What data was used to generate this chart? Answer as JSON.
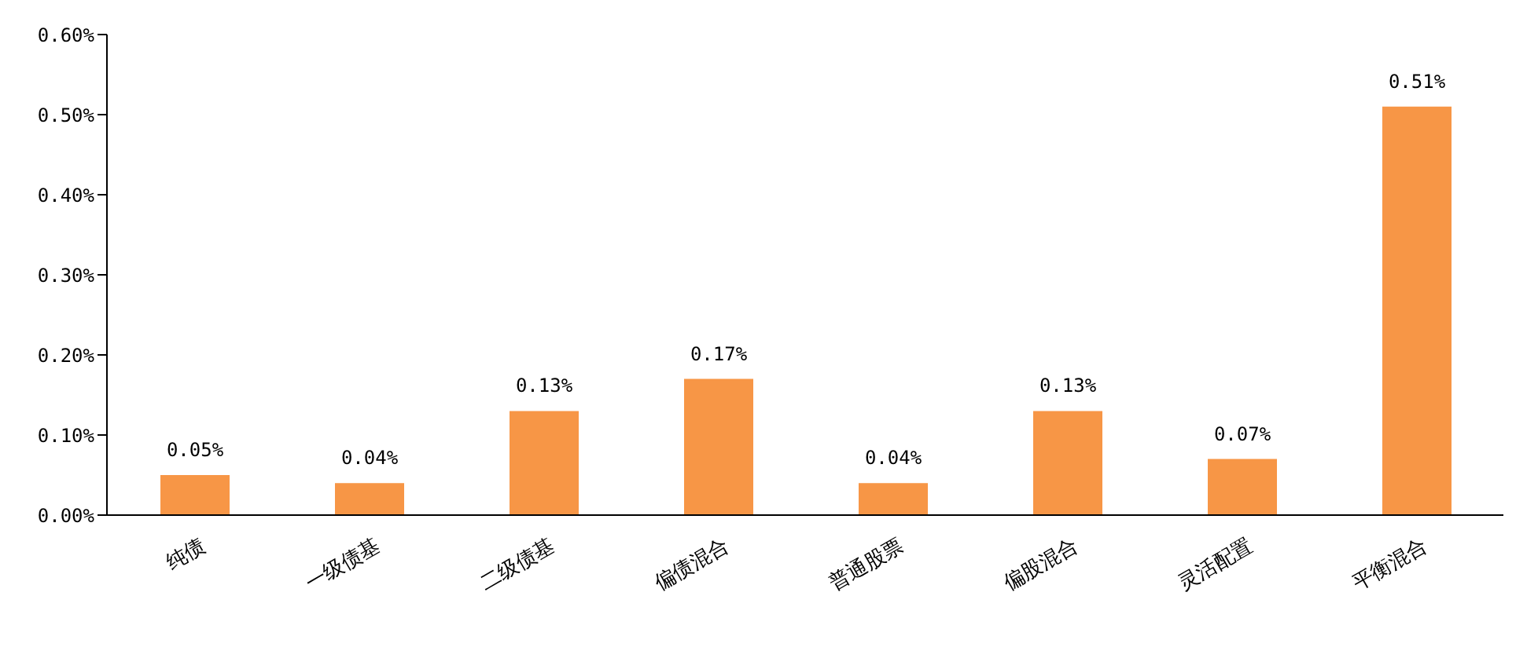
{
  "chart_data": {
    "type": "bar",
    "categories": [
      "纯债",
      "一级债基",
      "二级债基",
      "偏债混合",
      "普通股票",
      "偏股混合",
      "灵活配置",
      "平衡混合"
    ],
    "values": [
      0.05,
      0.04,
      0.13,
      0.17,
      0.04,
      0.13,
      0.07,
      0.51
    ],
    "value_labels": [
      "0.05%",
      "0.04%",
      "0.13%",
      "0.17%",
      "0.04%",
      "0.13%",
      "0.07%",
      "0.51%"
    ],
    "color": "#f79646",
    "ylim": [
      0,
      0.6
    ],
    "yticks": [
      {
        "value": 0,
        "label": "0.00%"
      },
      {
        "value": 0.1,
        "label": "0.10%"
      },
      {
        "value": 0.2,
        "label": "0.20%"
      },
      {
        "value": 0.3,
        "label": "0.30%"
      },
      {
        "value": 0.4,
        "label": "0.40%"
      },
      {
        "value": 0.5,
        "label": "0.50%"
      },
      {
        "value": 0.6,
        "label": "0.60%"
      }
    ],
    "grid": false,
    "legend": false
  }
}
